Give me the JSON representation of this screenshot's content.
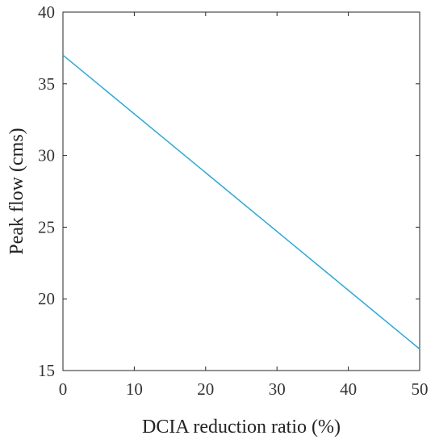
{
  "chart_data": {
    "type": "line",
    "xlabel": "DCIA reduction ratio (%)",
    "ylabel": "Peak flow (cms)",
    "xlim": [
      0,
      50
    ],
    "ylim": [
      15,
      40
    ],
    "x_ticks": [
      0,
      10,
      20,
      30,
      40,
      50
    ],
    "y_ticks": [
      15,
      20,
      25,
      30,
      35,
      40
    ],
    "x_tick_labels": [
      "0",
      "10",
      "20",
      "30",
      "40",
      "50"
    ],
    "y_tick_labels": [
      "15",
      "20",
      "25",
      "30",
      "35",
      "40"
    ],
    "grid": false,
    "legend": "none",
    "series": [
      {
        "x": [
          0,
          50
        ],
        "y": [
          37.0,
          16.5
        ],
        "color": "#2aa8d8"
      }
    ]
  },
  "colors": {
    "axis": "#262626",
    "line": "#2aa8d8"
  }
}
